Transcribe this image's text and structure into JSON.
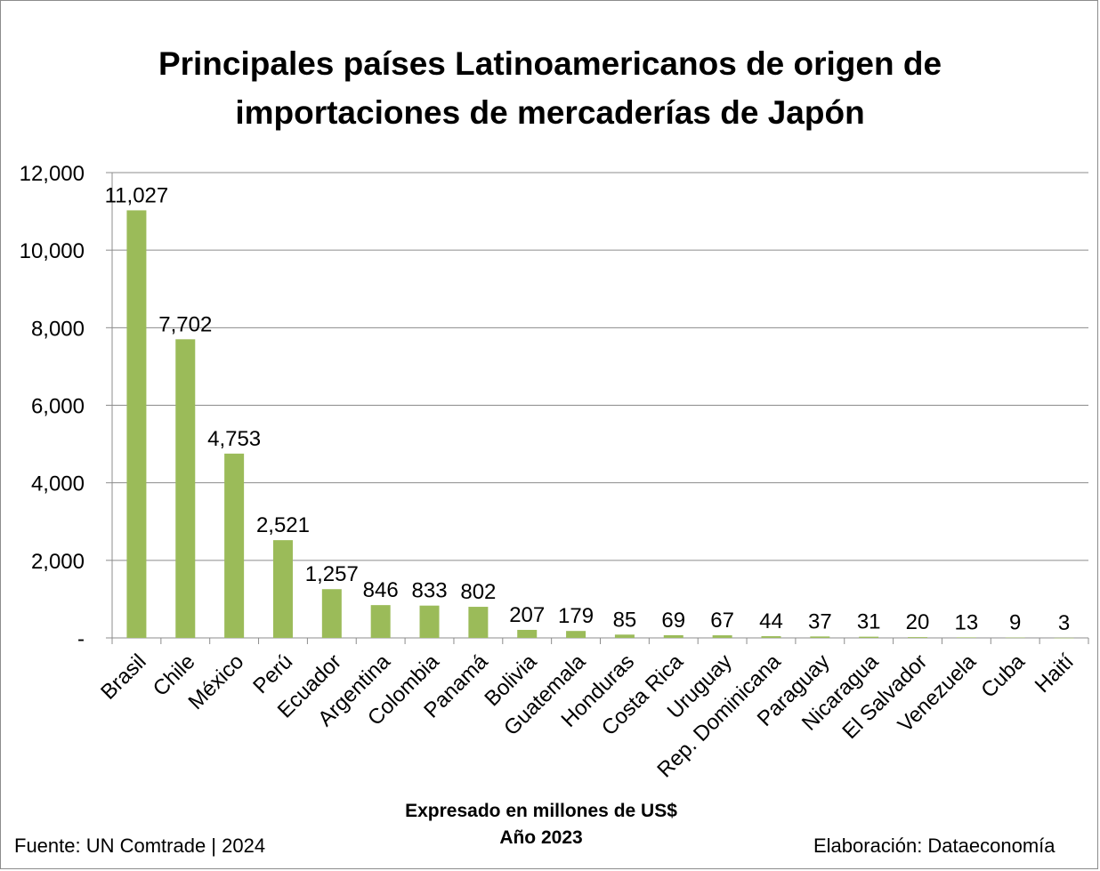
{
  "chart_data": {
    "type": "bar",
    "title": [
      "Principales países Latinoamericanos de origen de",
      "importaciones de mercaderías de Japón"
    ],
    "categories": [
      "Brasil",
      "Chile",
      "México",
      "Perú",
      "Ecuador",
      "Argentina",
      "Colombia",
      "Panamá",
      "Bolivia",
      "Guatemala",
      "Honduras",
      "Costa Rica",
      "Uruguay",
      "Rep. Dominicana",
      "Paraguay",
      "Nicaragua",
      "El Salvador",
      "Venezuela",
      "Cuba",
      "Haití"
    ],
    "values": [
      11027,
      7702,
      4753,
      2521,
      1257,
      846,
      833,
      802,
      207,
      179,
      85,
      69,
      67,
      44,
      37,
      31,
      20,
      13,
      9,
      3
    ],
    "data_labels": [
      "11,027",
      "7,702",
      "4,753",
      "2,521",
      "1,257",
      "846",
      "833",
      "802",
      "207",
      "179",
      "85",
      "69",
      "67",
      "44",
      "37",
      "31",
      "20",
      "13",
      "9",
      "3"
    ],
    "ylim": [
      0,
      12000
    ],
    "y_ticks": [
      0,
      2000,
      4000,
      6000,
      8000,
      10000,
      12000
    ],
    "y_tick_labels": [
      "-",
      "2,000",
      "4,000",
      "6,000",
      "8,000",
      "10,000",
      "12,000"
    ],
    "grid": true,
    "bar_color": "#9bbb59",
    "legend": "none"
  },
  "notes": {
    "line1": "Expresado en millones de US$",
    "line2": "Año 2023"
  },
  "footer": {
    "source": "Fuente: UN Comtrade | 2024",
    "credit": "Elaboración: Dataeconomía"
  }
}
